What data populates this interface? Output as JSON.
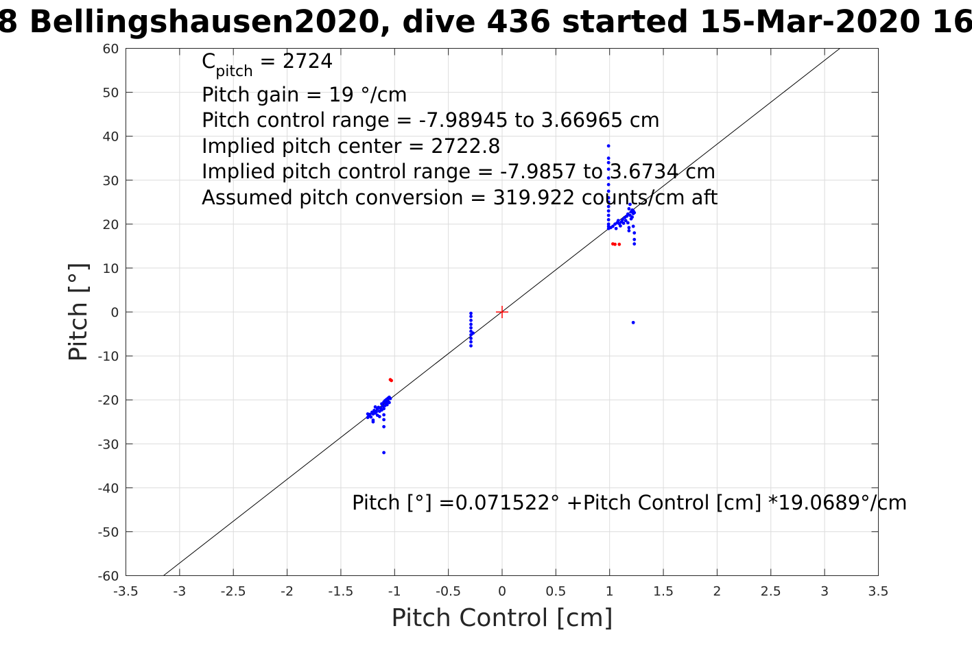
{
  "chart_data": {
    "type": "scatter",
    "title": "8 Bellingshausen2020, dive 436 started 15-Mar-2020 16",
    "xlabel": "Pitch Control [cm]",
    "ylabel": "Pitch [°]",
    "xlim": [
      -3.5,
      3.5
    ],
    "ylim": [
      -60,
      60
    ],
    "xticks": [
      -3.5,
      -3,
      -2.5,
      -2,
      -1.5,
      -1,
      -0.5,
      0,
      0.5,
      1,
      1.5,
      2,
      2.5,
      3,
      3.5
    ],
    "xtick_labels": [
      "-3.5",
      "-3",
      "-2.5",
      "-2",
      "-1.5",
      "-1",
      "-0.5",
      "0",
      "0.5",
      "1",
      "1.5",
      "2",
      "2.5",
      "3",
      "3.5"
    ],
    "yticks": [
      60,
      50,
      40,
      30,
      20,
      10,
      0,
      -10,
      -20,
      -30,
      -40,
      -50,
      -60
    ],
    "ytick_labels": [
      "60",
      "50",
      "40",
      "30",
      "20",
      "10",
      "0",
      "-10",
      "-20",
      "-30",
      "-40",
      "-50",
      "-60"
    ],
    "grid": true,
    "annotations": {
      "c_pitch_base": "C",
      "c_pitch_sub": "pitch",
      "c_pitch_value": " = 2724",
      "pitch_gain": "Pitch gain = 19 °/cm",
      "pitch_control_range": "Pitch control range = -7.98945 to 3.66965 cm",
      "implied_center": "Implied pitch center = 2722.8",
      "implied_range": "Implied pitch control range = -7.9857 to 3.6734 cm",
      "assumed_conversion": "Assumed pitch conversion = 319.922 counts/cm aft",
      "fit_equation": "Pitch [°] =0.071522° +Pitch Control [cm] *19.0689°/cm"
    },
    "fit_line": {
      "intercept": 0.071522,
      "slope": 19.0689,
      "color": "#000000"
    },
    "center_marker": {
      "x": 0,
      "y": 0,
      "color": "#ff0000"
    },
    "series": [
      {
        "color": "#0000ff",
        "points": [
          [
            -1.25,
            -24.0
          ],
          [
            -1.24,
            -23.6
          ],
          [
            -1.23,
            -23.3
          ],
          [
            -1.22,
            -23.9
          ],
          [
            -1.21,
            -22.8
          ],
          [
            -1.2,
            -23.2
          ],
          [
            -1.2,
            -24.6
          ],
          [
            -1.19,
            -22.4
          ],
          [
            -1.18,
            -23.0
          ],
          [
            -1.18,
            -21.6
          ],
          [
            -1.17,
            -22.7
          ],
          [
            -1.16,
            -23.5
          ],
          [
            -1.16,
            -22.1
          ],
          [
            -1.15,
            -21.7
          ],
          [
            -1.14,
            -22.6
          ],
          [
            -1.14,
            -23.8
          ],
          [
            -1.13,
            -21.9
          ],
          [
            -1.12,
            -22.3
          ],
          [
            -1.12,
            -20.9
          ],
          [
            -1.11,
            -21.4
          ],
          [
            -1.1,
            -20.5
          ],
          [
            -1.1,
            -22.0
          ],
          [
            -1.1,
            -23.4
          ],
          [
            -1.1,
            -24.5
          ],
          [
            -1.1,
            -26.1
          ],
          [
            -1.09,
            -20.2
          ],
          [
            -1.09,
            -21.3
          ],
          [
            -1.08,
            -20.0
          ],
          [
            -1.08,
            -20.8
          ],
          [
            -1.07,
            -19.8
          ],
          [
            -1.07,
            -21.1
          ],
          [
            -1.06,
            -19.6
          ],
          [
            -1.06,
            -20.4
          ],
          [
            -1.05,
            -19.4
          ],
          [
            -1.05,
            -20.6
          ],
          [
            -1.04,
            -19.7
          ],
          [
            -1.2,
            -25.0
          ],
          [
            -1.25,
            -23.2
          ],
          [
            -1.1,
            -32.0
          ],
          [
            -0.29,
            -0.3
          ],
          [
            -0.29,
            -1.0
          ],
          [
            -0.29,
            -1.9
          ],
          [
            -0.29,
            -2.8
          ],
          [
            -0.29,
            -3.6
          ],
          [
            -0.29,
            -4.4
          ],
          [
            -0.29,
            -5.2
          ],
          [
            -0.29,
            -6.0
          ],
          [
            -0.29,
            -6.8
          ],
          [
            -0.29,
            -7.7
          ],
          [
            -0.27,
            -4.8
          ],
          [
            0.99,
            37.8
          ],
          [
            0.99,
            35.0
          ],
          [
            0.99,
            34.0
          ],
          [
            0.99,
            32.5
          ],
          [
            0.99,
            30.5
          ],
          [
            0.99,
            29.0
          ],
          [
            0.99,
            27.5
          ],
          [
            0.99,
            26.0
          ],
          [
            0.99,
            25.0
          ],
          [
            0.99,
            24.0
          ],
          [
            0.99,
            23.0
          ],
          [
            0.99,
            22.0
          ],
          [
            0.99,
            21.0
          ],
          [
            0.99,
            20.0
          ],
          [
            0.99,
            19.5
          ],
          [
            0.99,
            19.0
          ],
          [
            1.01,
            19.2
          ],
          [
            1.03,
            19.5
          ],
          [
            1.05,
            20.0
          ],
          [
            1.06,
            19.0
          ],
          [
            1.07,
            20.3
          ],
          [
            1.08,
            20.8
          ],
          [
            1.09,
            20.1
          ],
          [
            1.1,
            19.6
          ],
          [
            1.11,
            20.5
          ],
          [
            1.12,
            21.0
          ],
          [
            1.13,
            20.2
          ],
          [
            1.14,
            21.5
          ],
          [
            1.15,
            20.8
          ],
          [
            1.16,
            21.8
          ],
          [
            1.17,
            22.3
          ],
          [
            1.17,
            20.3
          ],
          [
            1.18,
            19.2
          ],
          [
            1.18,
            18.5
          ],
          [
            1.18,
            23.5
          ],
          [
            1.19,
            22.0
          ],
          [
            1.19,
            24.5
          ],
          [
            1.2,
            21.2
          ],
          [
            1.2,
            22.8
          ],
          [
            1.21,
            21.6
          ],
          [
            1.21,
            23.2
          ],
          [
            1.22,
            22.4
          ],
          [
            1.22,
            23.0
          ],
          [
            1.23,
            22.6
          ],
          [
            1.22,
            19.5
          ],
          [
            1.23,
            18.0
          ],
          [
            1.23,
            16.5
          ],
          [
            1.23,
            15.5
          ],
          [
            1.22,
            -2.4
          ]
        ]
      },
      {
        "color": "#ff0000",
        "points": [
          [
            -1.03,
            -15.6
          ],
          [
            -1.04,
            -15.4
          ],
          [
            1.03,
            15.5
          ],
          [
            1.05,
            15.4
          ],
          [
            1.09,
            15.4
          ]
        ]
      }
    ]
  }
}
